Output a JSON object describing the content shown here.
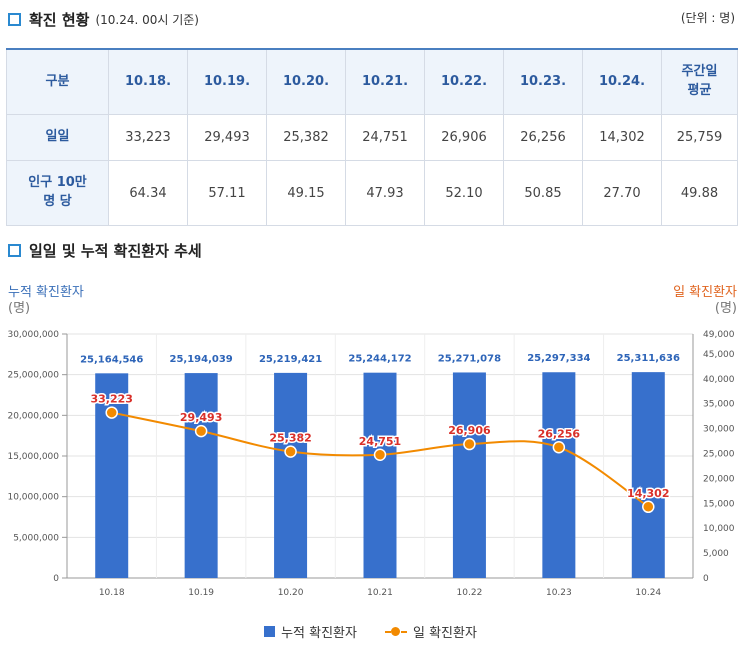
{
  "section1": {
    "title": "확진 현황",
    "subtitle": "(10.24. 00시 기준)",
    "unit": "(단위 : 명)"
  },
  "table": {
    "headers": [
      "구분",
      "10.18.",
      "10.19.",
      "10.20.",
      "10.21.",
      "10.22.",
      "10.23.",
      "10.24.",
      "주간일\n평균"
    ],
    "rows": [
      {
        "label": "일일",
        "values": [
          "33,223",
          "29,493",
          "25,382",
          "24,751",
          "26,906",
          "26,256",
          "14,302",
          "25,759"
        ]
      },
      {
        "label": "인구 10만\n명 당",
        "values": [
          "64.34",
          "57.11",
          "49.15",
          "47.93",
          "52.10",
          "50.85",
          "27.70",
          "49.88"
        ]
      }
    ]
  },
  "section2": {
    "title": "일일 및 누적 확진환자 추세"
  },
  "axis_left": {
    "title": "누적 확진환자",
    "unit": "(명)"
  },
  "axis_right": {
    "title": "일 확진환자",
    "unit": "(명)"
  },
  "colors": {
    "bar": "#3770cc",
    "line": "#f28a00",
    "bar_label": "#2d64b8",
    "line_label": "#d9302a"
  },
  "chart_data": {
    "type": "bar",
    "categories": [
      "10.18",
      "10.19",
      "10.20",
      "10.21",
      "10.22",
      "10.23",
      "10.24"
    ],
    "series": [
      {
        "name": "누적 확진환자",
        "type": "bar",
        "axis": "left",
        "values": [
          25164546,
          25194039,
          25219421,
          25244172,
          25271078,
          25297334,
          25311636
        ],
        "labels": [
          "25,164,546",
          "25,194,039",
          "25,219,421",
          "25,244,172",
          "25,271,078",
          "25,297,334",
          "25,311,636"
        ]
      },
      {
        "name": "일 확진환자",
        "type": "line",
        "axis": "right",
        "values": [
          33223,
          29493,
          25382,
          24751,
          26906,
          26256,
          14302
        ],
        "labels": [
          "33,223",
          "29,493",
          "25,382",
          "24,751",
          "26,906",
          "26,256",
          "14,302"
        ]
      }
    ],
    "y_left": {
      "min": 0,
      "max": 30000000,
      "ticks": [
        0,
        5000000,
        10000000,
        15000000,
        20000000,
        25000000,
        30000000
      ],
      "tick_labels": [
        "0",
        "5,000,000",
        "10,000,000",
        "15,000,000",
        "20,000,000",
        "25,000,000",
        "30,000,000"
      ]
    },
    "y_right": {
      "min": 0,
      "max": 49000,
      "ticks": [
        0,
        5000,
        10000,
        15000,
        20000,
        25000,
        30000,
        35000,
        40000,
        45000,
        49000
      ],
      "tick_labels": [
        "0",
        "5,000",
        "10,000",
        "15,000",
        "20,000",
        "25,000",
        "30,000",
        "35,000",
        "40,000",
        "45,000",
        "49,000"
      ]
    },
    "grid": true,
    "legend": "bottom-center"
  }
}
